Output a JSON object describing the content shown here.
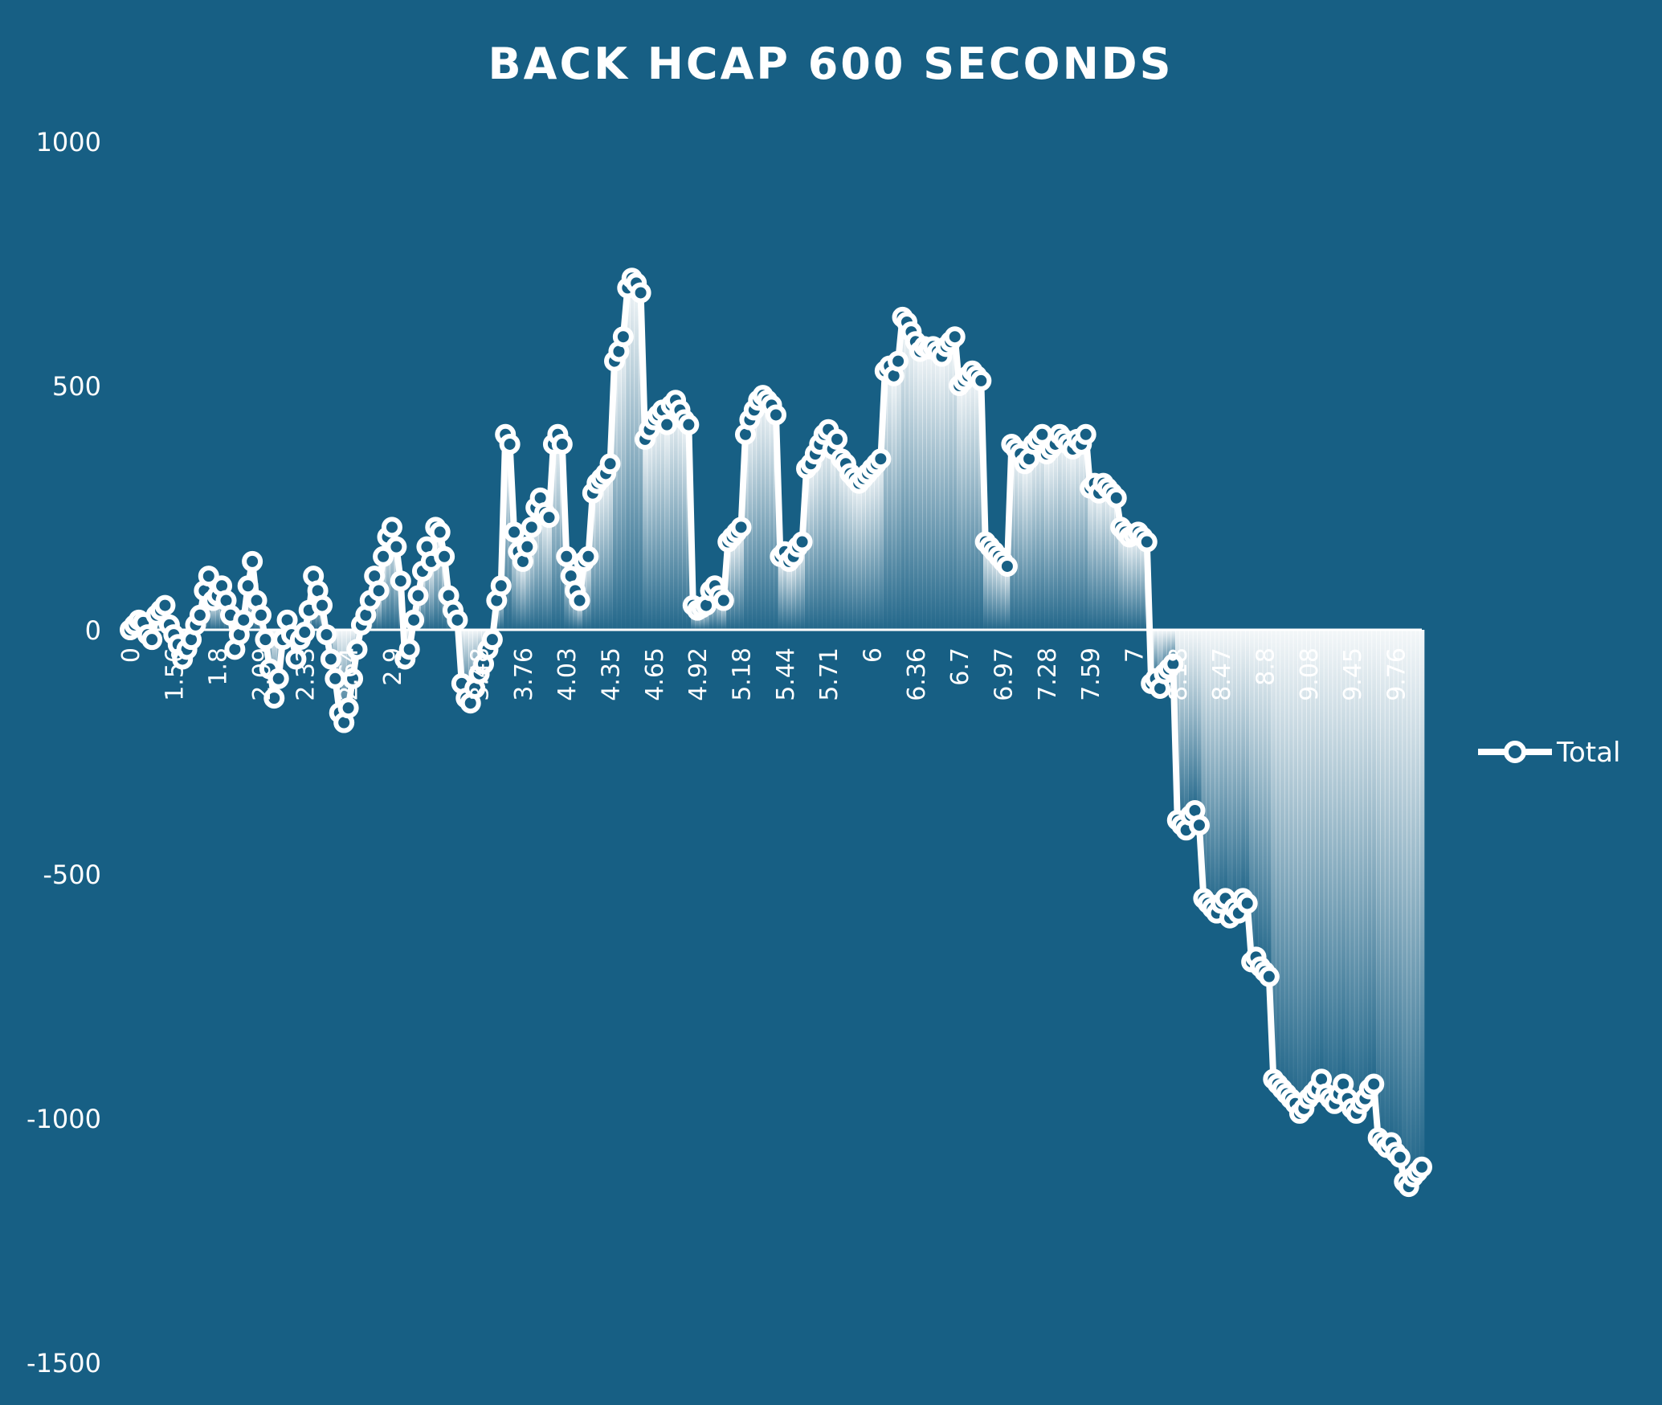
{
  "colors": {
    "background": "#175f84",
    "line": "#ffffff",
    "marker_fill": "#175f84",
    "text": "#ffffff"
  },
  "chart_data": {
    "type": "line",
    "title": "BACK HCAP 600 SECONDS",
    "xlabel": "",
    "ylabel": "",
    "ylim": [
      -1500,
      1000
    ],
    "yticks": [
      "1000",
      "500",
      "0",
      "-500",
      "-1000",
      "-1500"
    ],
    "grid": false,
    "legend": {
      "position": "right",
      "entries": [
        "Total"
      ]
    },
    "x_tick_labels": [
      {
        "i": 0,
        "label": "0"
      },
      {
        "i": 10,
        "label": "1.56"
      },
      {
        "i": 20,
        "label": "1.8"
      },
      {
        "i": 30,
        "label": "2.09"
      },
      {
        "i": 40,
        "label": "2.33"
      },
      {
        "i": 50,
        "label": "2.64"
      },
      {
        "i": 60,
        "label": "2.9"
      },
      {
        "i": 80,
        "label": "3.48"
      },
      {
        "i": 90,
        "label": "3.76"
      },
      {
        "i": 100,
        "label": "4.03"
      },
      {
        "i": 110,
        "label": "4.35"
      },
      {
        "i": 120,
        "label": "4.65"
      },
      {
        "i": 130,
        "label": "4.92"
      },
      {
        "i": 140,
        "label": "5.18"
      },
      {
        "i": 150,
        "label": "5.44"
      },
      {
        "i": 160,
        "label": "5.71"
      },
      {
        "i": 170,
        "label": "6"
      },
      {
        "i": 180,
        "label": "6.36"
      },
      {
        "i": 190,
        "label": "6.7"
      },
      {
        "i": 200,
        "label": "6.97"
      },
      {
        "i": 210,
        "label": "7.28"
      },
      {
        "i": 220,
        "label": "7.59"
      },
      {
        "i": 230,
        "label": "7"
      },
      {
        "i": 240,
        "label": "8.18"
      },
      {
        "i": 250,
        "label": "8.47"
      },
      {
        "i": 260,
        "label": "8.8"
      },
      {
        "i": 270,
        "label": "9.08"
      },
      {
        "i": 280,
        "label": "9.45"
      },
      {
        "i": 290,
        "label": "9.76"
      }
    ],
    "series": [
      {
        "name": "Total",
        "values": [
          0,
          10,
          20,
          15,
          -10,
          -20,
          30,
          40,
          50,
          10,
          -10,
          -30,
          -60,
          -40,
          -20,
          10,
          30,
          80,
          110,
          60,
          70,
          90,
          60,
          30,
          -40,
          -10,
          20,
          90,
          140,
          60,
          30,
          -20,
          -80,
          -140,
          -100,
          -20,
          20,
          -10,
          -60,
          -20,
          -5,
          40,
          110,
          80,
          50,
          -10,
          -60,
          -100,
          -170,
          -190,
          -160,
          -100,
          -40,
          10,
          30,
          60,
          110,
          80,
          150,
          190,
          210,
          170,
          100,
          -60,
          -40,
          20,
          70,
          120,
          170,
          140,
          210,
          200,
          150,
          70,
          40,
          20,
          -110,
          -140,
          -150,
          -120,
          -90,
          -70,
          -40,
          -20,
          60,
          90,
          400,
          380,
          200,
          160,
          140,
          170,
          210,
          250,
          270,
          240,
          230,
          380,
          400,
          380,
          150,
          110,
          80,
          60,
          140,
          150,
          280,
          300,
          310,
          320,
          340,
          550,
          570,
          600,
          700,
          720,
          710,
          690,
          390,
          410,
          430,
          440,
          450,
          420,
          460,
          470,
          450,
          430,
          420,
          50,
          40,
          45,
          50,
          80,
          90,
          70,
          60,
          180,
          190,
          200,
          210,
          400,
          430,
          450,
          470,
          480,
          470,
          460,
          440,
          150,
          160,
          140,
          150,
          170,
          180,
          330,
          340,
          360,
          380,
          400,
          410,
          370,
          390,
          350,
          340,
          320,
          310,
          300,
          310,
          320,
          330,
          340,
          350,
          530,
          540,
          520,
          550,
          640,
          630,
          610,
          590,
          570,
          580,
          575,
          580,
          570,
          560,
          580,
          590,
          600,
          500,
          510,
          520,
          530,
          520,
          510,
          180,
          170,
          160,
          150,
          140,
          130,
          380,
          370,
          360,
          340,
          350,
          380,
          390,
          400,
          360,
          370,
          380,
          400,
          390,
          380,
          370,
          390,
          380,
          400,
          290,
          300,
          280,
          300,
          290,
          280,
          270,
          210,
          200,
          190,
          195,
          200,
          190,
          180,
          -110,
          -100,
          -120,
          -90,
          -80,
          -70,
          -390,
          -400,
          -410,
          -380,
          -370,
          -400,
          -550,
          -560,
          -570,
          -580,
          -560,
          -550,
          -590,
          -570,
          -580,
          -550,
          -560,
          -680,
          -670,
          -690,
          -700,
          -710,
          -920,
          -930,
          -940,
          -950,
          -960,
          -970,
          -990,
          -980,
          -960,
          -950,
          -940,
          -920,
          -950,
          -960,
          -970,
          -950,
          -930,
          -960,
          -980,
          -990,
          -970,
          -960,
          -940,
          -930,
          -1040,
          -1050,
          -1060,
          -1050,
          -1070,
          -1080,
          -1130,
          -1140,
          -1120,
          -1110,
          -1100
        ]
      }
    ]
  }
}
